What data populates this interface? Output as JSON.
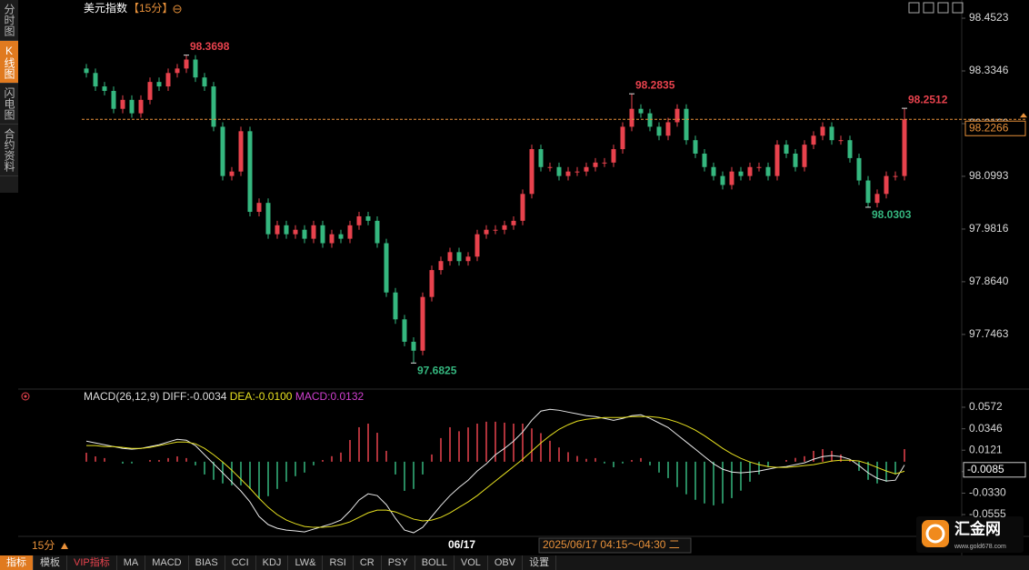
{
  "sidebar": [
    "分时图",
    "K线图",
    "闪电图",
    "合约资料"
  ],
  "toolbar": [
    "指标",
    "模板",
    "VIP指标",
    "MA",
    "MACD",
    "BIAS",
    "CCI",
    "KDJ",
    "LW&",
    "RSI",
    "CR",
    "PSY",
    "BOLL",
    "VOL",
    "OBV",
    "设置"
  ],
  "footer": {
    "period": "15分",
    "date_marker": "06/17",
    "time_range": "2025/06/17 04:15～04:30 二"
  },
  "logo": {
    "name": "汇金网",
    "url": "www.gold678.com"
  },
  "chart_data": [
    {
      "type": "candlestick",
      "title": "美元指数",
      "period": "【15分】",
      "up_color": "#e8424d",
      "down_color": "#35b77f",
      "ylim": [
        97.6243,
        98.4767
      ],
      "yticks": [
        98.4523,
        98.3346,
        98.2169,
        98.0993,
        97.9816,
        {
          "value": 97.864,
          "label": "97.8640"
        },
        97.7463
      ],
      "current_price": 98.2266,
      "open": [
        98.34,
        98.33,
        98.3,
        98.29,
        98.25,
        98.27,
        98.24,
        98.27,
        98.31,
        98.3,
        98.33,
        98.34,
        98.36,
        98.32,
        98.3,
        98.21,
        98.1,
        98.11,
        98.2,
        98.02,
        98.04,
        97.97,
        97.99,
        97.97,
        97.98,
        97.96,
        97.99,
        97.95,
        97.97,
        97.96,
        97.99,
        98.01,
        98.0,
        97.95,
        97.84,
        97.78,
        97.73,
        97.71,
        97.83,
        97.89,
        97.91,
        97.93,
        97.91,
        97.92,
        97.97,
        97.98,
        97.98,
        97.99,
        98.0,
        98.06,
        98.16,
        98.12,
        98.12,
        98.1,
        98.11,
        98.11,
        98.12,
        98.13,
        98.13,
        98.16,
        98.21,
        98.25,
        98.24,
        98.21,
        98.19,
        98.22,
        98.25,
        98.18,
        98.15,
        98.12,
        98.1,
        98.08,
        98.11,
        98.1,
        98.12,
        98.12,
        98.1,
        98.17,
        98.15,
        98.12,
        98.17,
        98.19,
        98.21,
        98.18,
        98.18,
        98.14,
        98.09,
        98.04,
        98.06,
        98.1,
        98.1
      ],
      "high": [
        98.35,
        98.34,
        98.31,
        98.3,
        98.28,
        98.28,
        98.28,
        98.32,
        98.32,
        98.34,
        98.35,
        98.3698,
        98.37,
        98.33,
        98.31,
        98.22,
        98.12,
        98.21,
        98.21,
        98.05,
        98.05,
        98.0,
        98.0,
        97.99,
        97.99,
        98.0,
        98.0,
        97.98,
        97.98,
        98.0,
        98.02,
        98.02,
        98.01,
        97.96,
        97.85,
        97.79,
        97.74,
        97.84,
        97.9,
        97.92,
        97.94,
        97.94,
        97.93,
        97.98,
        97.99,
        97.99,
        98.0,
        98.01,
        98.07,
        98.17,
        98.17,
        98.13,
        98.13,
        98.12,
        98.12,
        98.13,
        98.14,
        98.14,
        98.17,
        98.22,
        98.2835,
        98.26,
        98.25,
        98.22,
        98.23,
        98.26,
        98.26,
        98.19,
        98.16,
        98.13,
        98.11,
        98.12,
        98.12,
        98.13,
        98.13,
        98.13,
        98.18,
        98.18,
        98.16,
        98.18,
        98.2,
        98.22,
        98.22,
        98.19,
        98.19,
        98.15,
        98.1,
        98.07,
        98.11,
        98.11,
        98.2512
      ],
      "low": [
        98.32,
        98.29,
        98.28,
        98.24,
        98.24,
        98.23,
        98.23,
        98.26,
        98.29,
        98.29,
        98.32,
        98.33,
        98.31,
        98.29,
        98.2,
        98.09,
        98.09,
        98.1,
        98.01,
        98.01,
        97.96,
        97.96,
        97.96,
        97.96,
        97.95,
        97.95,
        97.94,
        97.94,
        97.95,
        97.95,
        97.98,
        97.99,
        97.94,
        97.83,
        97.77,
        97.72,
        97.6825,
        97.7,
        97.82,
        97.88,
        97.9,
        97.9,
        97.9,
        97.91,
        97.96,
        97.97,
        97.97,
        97.98,
        97.99,
        98.05,
        98.11,
        98.11,
        98.09,
        98.09,
        98.1,
        98.1,
        98.11,
        98.12,
        98.12,
        98.15,
        98.2,
        98.23,
        98.2,
        98.18,
        98.18,
        98.21,
        98.17,
        98.14,
        98.11,
        98.09,
        98.07,
        98.07,
        98.09,
        98.09,
        98.11,
        98.09,
        98.09,
        98.14,
        98.11,
        98.11,
        98.16,
        98.18,
        98.17,
        98.17,
        98.13,
        98.08,
        98.0303,
        98.03,
        98.05,
        98.09,
        98.09
      ],
      "close": [
        98.33,
        98.3,
        98.29,
        98.25,
        98.27,
        98.24,
        98.27,
        98.31,
        98.3,
        98.33,
        98.34,
        98.36,
        98.32,
        98.3,
        98.21,
        98.1,
        98.11,
        98.2,
        98.02,
        98.04,
        97.97,
        97.99,
        97.97,
        97.98,
        97.96,
        97.99,
        97.95,
        97.97,
        97.96,
        97.99,
        98.01,
        98.0,
        97.95,
        97.84,
        97.78,
        97.73,
        97.71,
        97.83,
        97.89,
        97.91,
        97.93,
        97.91,
        97.92,
        97.97,
        97.98,
        97.98,
        97.99,
        98.0,
        98.06,
        98.16,
        98.12,
        98.12,
        98.1,
        98.11,
        98.11,
        98.12,
        98.13,
        98.13,
        98.16,
        98.21,
        98.25,
        98.24,
        98.21,
        98.19,
        98.22,
        98.25,
        98.18,
        98.15,
        98.12,
        98.1,
        98.08,
        98.11,
        98.1,
        98.12,
        98.12,
        98.1,
        98.17,
        98.15,
        98.12,
        98.17,
        98.19,
        98.21,
        98.18,
        98.18,
        98.14,
        98.09,
        98.04,
        98.06,
        98.1,
        98.1,
        98.2266
      ]
    },
    {
      "type": "macd",
      "title": "MACD(26,12,9)",
      "diff_label": "DIFF:-0.0034",
      "dea_label": "DEA:-0.0100",
      "macd_label": "MACD:0.0132",
      "ylim": [
        -0.076,
        0.0648
      ],
      "yticks": [
        0.0572,
        0.0346,
        0.0121,
        -0.0104,
        {
          "value": -0.033,
          "label": "-0.0330"
        },
        -0.0555
      ],
      "current_value": -0.0085,
      "series": [
        {
          "name": "DIFF",
          "color": "#e8e8e8",
          "values": [
            0.0216,
            0.0197,
            0.0178,
            0.0159,
            0.014,
            0.0131,
            0.014,
            0.0159,
            0.0178,
            0.0207,
            0.0235,
            0.0226,
            0.0169,
            0.0073,
            -0.0022,
            -0.0117,
            -0.0213,
            -0.0308,
            -0.0422,
            -0.0575,
            -0.066,
            -0.0699,
            -0.0718,
            -0.0727,
            -0.0737,
            -0.0708,
            -0.068,
            -0.0651,
            -0.0613,
            -0.0518,
            -0.0403,
            -0.0337,
            -0.0356,
            -0.0451,
            -0.0594,
            -0.0718,
            -0.0746,
            -0.0689,
            -0.0575,
            -0.046,
            -0.0356,
            -0.027,
            -0.0194,
            -0.0098,
            -0.0022,
            0.0073,
            0.014,
            0.0216,
            0.0312,
            0.0435,
            0.0531,
            0.055,
            0.054,
            0.0521,
            0.0502,
            0.0483,
            0.0474,
            0.0455,
            0.0435,
            0.0455,
            0.0483,
            0.0493,
            0.0455,
            0.0407,
            0.0359,
            0.0283,
            0.0207,
            0.0131,
            0.0054,
            -0.0022,
            -0.0079,
            -0.0108,
            -0.0117,
            -0.0108,
            -0.0098,
            -0.0079,
            -0.006,
            -0.0051,
            -0.0031,
            -0.0012,
            0.0026,
            0.0054,
            0.0064,
            0.0054,
            0.0026,
            -0.0041,
            -0.0117,
            -0.0174,
            -0.0203,
            -0.0194,
            -0.0034
          ]
        },
        {
          "name": "DEA",
          "color": "#e6e020",
          "values": [
            0.0169,
            0.0169,
            0.0159,
            0.0159,
            0.015,
            0.014,
            0.014,
            0.015,
            0.0169,
            0.0188,
            0.0207,
            0.0207,
            0.0188,
            0.014,
            0.0073,
            -0.0003,
            -0.0089,
            -0.0184,
            -0.0279,
            -0.0384,
            -0.0479,
            -0.0556,
            -0.0613,
            -0.0651,
            -0.068,
            -0.0689,
            -0.0689,
            -0.068,
            -0.0661,
            -0.0632,
            -0.0584,
            -0.0537,
            -0.0508,
            -0.0508,
            -0.0527,
            -0.0565,
            -0.0603,
            -0.0622,
            -0.0613,
            -0.0584,
            -0.0537,
            -0.0479,
            -0.0422,
            -0.0356,
            -0.0279,
            -0.0203,
            -0.0127,
            -0.0051,
            0.0026,
            0.0111,
            0.0197,
            0.0273,
            0.034,
            0.0388,
            0.0426,
            0.0445,
            0.0455,
            0.0464,
            0.0464,
            0.0464,
            0.0474,
            0.0474,
            0.0474,
            0.0464,
            0.0445,
            0.0416,
            0.0378,
            0.0331,
            0.0273,
            0.0207,
            0.014,
            0.0083,
            0.0035,
            -0.0003,
            -0.0031,
            -0.0051,
            -0.006,
            -0.006,
            -0.0051,
            -0.0041,
            -0.0031,
            -0.0012,
            0.0007,
            0.0016,
            0.0016,
            0.0007,
            -0.0022,
            -0.006,
            -0.0098,
            -0.0127,
            -0.01
          ]
        },
        {
          "name": "MACD",
          "color": "#d040d0",
          "up_color": "#e8424d",
          "down_color": "#35b77f",
          "values": [
            0.0094,
            0.0056,
            0.0038,
            0,
            -0.002,
            -0.0018,
            0,
            0.0018,
            0.0018,
            0.0038,
            0.0056,
            0.0038,
            -0.0038,
            -0.0134,
            -0.019,
            -0.0228,
            -0.0248,
            -0.0248,
            -0.0286,
            -0.0382,
            -0.0362,
            -0.0286,
            -0.021,
            -0.0152,
            -0.0114,
            -0.0038,
            0.0018,
            0.0058,
            0.0096,
            0.0228,
            0.0362,
            0.04,
            0.0304,
            0.0114,
            -0.0134,
            -0.0306,
            -0.0286,
            -0.0134,
            0.0076,
            0.0248,
            0.0362,
            0.032,
            0.036,
            0.04,
            0.042,
            0.042,
            0.041,
            0.04,
            0.04,
            0.035,
            0.03,
            0.022,
            0.015,
            0.01,
            0.006,
            0.003,
            0.0038,
            -0.0018,
            -0.0058,
            -0.0018,
            0.0018,
            0.0038,
            -0.0038,
            -0.0114,
            -0.0172,
            -0.0266,
            -0.0342,
            -0.04,
            -0.0438,
            -0.0458,
            -0.0438,
            -0.0382,
            -0.0304,
            -0.021,
            -0.0134,
            -0.0056,
            0,
            0.0018,
            0.004,
            0.0058,
            0.0114,
            0.0132,
            0.0114,
            0.0076,
            0.002,
            -0.0096,
            -0.019,
            -0.0228,
            -0.021,
            -0.0134,
            0.0132
          ]
        }
      ]
    }
  ]
}
